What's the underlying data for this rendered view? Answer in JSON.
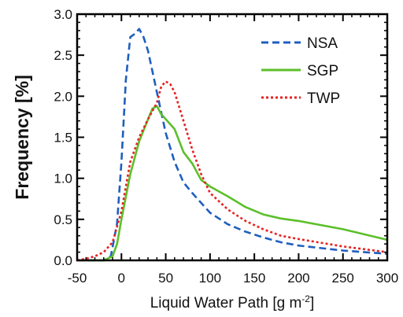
{
  "chart_data": {
    "type": "line",
    "xlabel": "Liquid Water Path [g m",
    "xlabel_superscript": "-2",
    "xlabel_suffix": "]",
    "ylabel": "Frequency [%]",
    "xlim": [
      -50,
      300
    ],
    "ylim": [
      0,
      3.0
    ],
    "x_ticks": [
      -50,
      0,
      50,
      100,
      150,
      200,
      250,
      300
    ],
    "x_tick_labels": [
      "-50",
      "0",
      "50",
      "100",
      "150",
      "200",
      "250",
      "300"
    ],
    "y_ticks": [
      0.0,
      0.5,
      1.0,
      1.5,
      2.0,
      2.5,
      3.0
    ],
    "y_tick_labels": [
      "0.0",
      "0.5",
      "1.0",
      "1.5",
      "2.0",
      "2.5",
      "3.0"
    ],
    "grid": false,
    "legend_position": "top-right",
    "series": [
      {
        "name": "NSA",
        "color": "#1f5fbf",
        "dash": "dashed",
        "x": [
          -50,
          -20,
          -12,
          -5,
          0,
          5,
          10,
          15,
          20,
          25,
          30,
          40,
          50,
          60,
          70,
          80,
          90,
          100,
          120,
          140,
          160,
          180,
          200,
          250,
          300
        ],
        "y": [
          0,
          0,
          0.05,
          0.45,
          1.2,
          2.2,
          2.72,
          2.76,
          2.82,
          2.72,
          2.55,
          2.05,
          1.55,
          1.2,
          0.95,
          0.82,
          0.7,
          0.58,
          0.44,
          0.35,
          0.28,
          0.22,
          0.18,
          0.12,
          0.08
        ]
      },
      {
        "name": "SGP",
        "color": "#5cbf2a",
        "dash": "solid",
        "x": [
          -50,
          -20,
          -10,
          -5,
          0,
          10,
          20,
          30,
          35,
          40,
          45,
          50,
          60,
          70,
          80,
          90,
          100,
          120,
          140,
          160,
          180,
          200,
          250,
          300
        ],
        "y": [
          0,
          0,
          0.05,
          0.2,
          0.5,
          1.05,
          1.45,
          1.72,
          1.85,
          1.88,
          1.78,
          1.72,
          1.6,
          1.32,
          1.18,
          0.98,
          0.9,
          0.78,
          0.65,
          0.56,
          0.51,
          0.48,
          0.38,
          0.25
        ]
      },
      {
        "name": "TWP",
        "color": "#e52222",
        "dash": "dotted",
        "x": [
          -50,
          -40,
          -30,
          -20,
          -10,
          0,
          10,
          20,
          30,
          40,
          45,
          50,
          55,
          60,
          70,
          80,
          90,
          100,
          120,
          140,
          160,
          180,
          200,
          250,
          300
        ],
        "y": [
          0,
          0.02,
          0.05,
          0.1,
          0.22,
          0.6,
          1.2,
          1.5,
          1.72,
          1.92,
          2.12,
          2.18,
          2.15,
          2.05,
          1.7,
          1.35,
          1.05,
          0.82,
          0.62,
          0.48,
          0.38,
          0.3,
          0.26,
          0.17,
          0.1
        ]
      }
    ]
  }
}
